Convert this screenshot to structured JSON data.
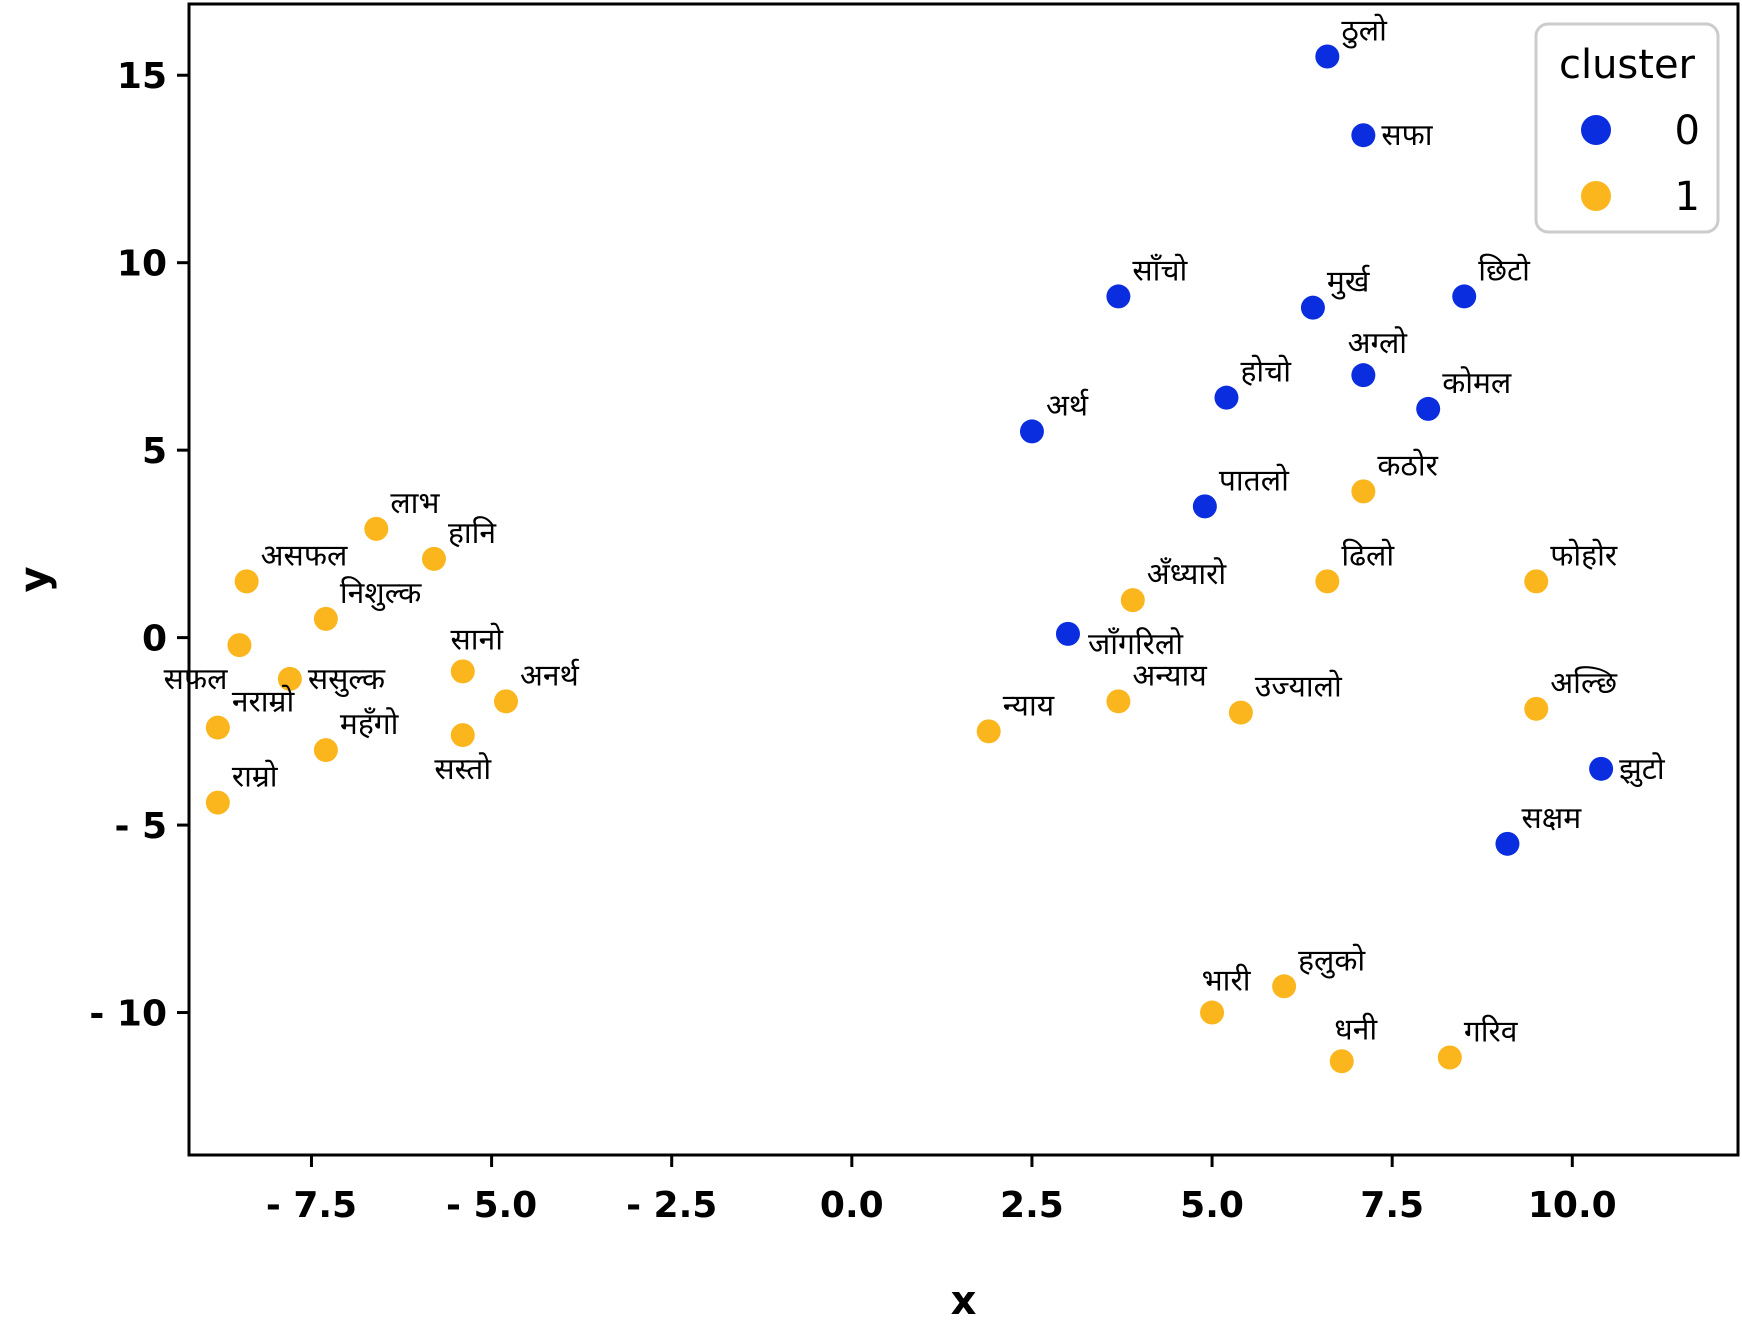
{
  "chart_data": {
    "type": "scatter",
    "xlabel": "x",
    "ylabel": "y",
    "xlim": [
      -9.2,
      12.3
    ],
    "ylim": [
      -13.8,
      16.9
    ],
    "xticks": [
      -7.5,
      -5.0,
      -2.5,
      0.0,
      2.5,
      5.0,
      7.5,
      10.0
    ],
    "xtick_labels": [
      "- 7.5",
      "- 5.0",
      "- 2.5",
      "0.0",
      "2.5",
      "5.0",
      "7.5",
      "10.0"
    ],
    "yticks": [
      15,
      10,
      5,
      0,
      -5,
      -10
    ],
    "ytick_labels": [
      "15",
      "10",
      "5",
      "0",
      "- 5",
      "- 10"
    ],
    "legend": {
      "title": "cluster",
      "position": "top-right",
      "entries": [
        {
          "label": "0",
          "color": "#0a2de0"
        },
        {
          "label": "1",
          "color": "#fbb61d"
        }
      ]
    },
    "series": [
      {
        "name": "0",
        "color": "#0a2de0",
        "points": [
          {
            "x": 6.6,
            "y": 15.5,
            "label": "ठुलो",
            "anchor": "ur"
          },
          {
            "x": 7.1,
            "y": 13.4,
            "label": "सफा",
            "anchor": "r"
          },
          {
            "x": 3.7,
            "y": 9.1,
            "label": "साँचो",
            "anchor": "ur"
          },
          {
            "x": 6.4,
            "y": 8.8,
            "label": "मुर्ख",
            "anchor": "ur"
          },
          {
            "x": 8.5,
            "y": 9.1,
            "label": "छिटो",
            "anchor": "ur"
          },
          {
            "x": 7.1,
            "y": 7.0,
            "label": "अग्लो",
            "anchor": "u"
          },
          {
            "x": 5.2,
            "y": 6.4,
            "label": "होचो",
            "anchor": "ur"
          },
          {
            "x": 8.0,
            "y": 6.1,
            "label": "कोमल",
            "anchor": "ur"
          },
          {
            "x": 2.5,
            "y": 5.5,
            "label": "अर्थ",
            "anchor": "ur"
          },
          {
            "x": 4.9,
            "y": 3.5,
            "label": "पातलो",
            "anchor": "ur"
          },
          {
            "x": 3.0,
            "y": 0.1,
            "label": "जाँगरिलो",
            "anchor": "dr"
          },
          {
            "x": 10.4,
            "y": -3.5,
            "label": "झुटो",
            "anchor": "r"
          },
          {
            "x": 9.1,
            "y": -5.5,
            "label": "सक्षम",
            "anchor": "ur"
          }
        ]
      },
      {
        "name": "1",
        "color": "#fbb61d",
        "points": [
          {
            "x": -6.6,
            "y": 2.9,
            "label": "लाभ",
            "anchor": "ur"
          },
          {
            "x": -5.8,
            "y": 2.1,
            "label": "हानि",
            "anchor": "ur"
          },
          {
            "x": -8.4,
            "y": 1.5,
            "label": "असफल",
            "anchor": "ur"
          },
          {
            "x": -7.3,
            "y": 0.5,
            "label": "निशुल्क",
            "anchor": "ur"
          },
          {
            "x": -8.5,
            "y": -0.2,
            "label": "सफल",
            "anchor": "dl"
          },
          {
            "x": -7.8,
            "y": -1.1,
            "label": "ससुल्क",
            "anchor": "r"
          },
          {
            "x": -5.4,
            "y": -0.9,
            "label": "सानो",
            "anchor": "u"
          },
          {
            "x": -4.8,
            "y": -1.7,
            "label": "अनर्थ",
            "anchor": "ur"
          },
          {
            "x": -8.8,
            "y": -2.4,
            "label": "नराम्रो",
            "anchor": "ur"
          },
          {
            "x": -7.3,
            "y": -3.0,
            "label": "महँगो",
            "anchor": "ur"
          },
          {
            "x": -5.4,
            "y": -2.6,
            "label": "सस्तो",
            "anchor": "d"
          },
          {
            "x": -8.8,
            "y": -4.4,
            "label": "राम्रो",
            "anchor": "ur"
          },
          {
            "x": 7.1,
            "y": 3.9,
            "label": "कठोर",
            "anchor": "ur"
          },
          {
            "x": 3.9,
            "y": 1.0,
            "label": "अँध्यारो",
            "anchor": "ur"
          },
          {
            "x": 6.6,
            "y": 1.5,
            "label": "ढिलो",
            "anchor": "ur"
          },
          {
            "x": 9.5,
            "y": 1.5,
            "label": "फोहोर",
            "anchor": "ur"
          },
          {
            "x": 3.7,
            "y": -1.7,
            "label": "अन्याय",
            "anchor": "ur"
          },
          {
            "x": 5.4,
            "y": -2.0,
            "label": "उज्यालो",
            "anchor": "ur"
          },
          {
            "x": 1.9,
            "y": -2.5,
            "label": "न्याय",
            "anchor": "ur"
          },
          {
            "x": 9.5,
            "y": -1.9,
            "label": "अल्छि",
            "anchor": "ur"
          },
          {
            "x": 5.0,
            "y": -10.0,
            "label": "भारी",
            "anchor": "u"
          },
          {
            "x": 6.0,
            "y": -9.3,
            "label": "हलुको",
            "anchor": "ur"
          },
          {
            "x": 6.8,
            "y": -11.3,
            "label": "धनी",
            "anchor": "u"
          },
          {
            "x": 8.3,
            "y": -11.2,
            "label": "गरिव",
            "anchor": "ur"
          }
        ]
      }
    ]
  }
}
